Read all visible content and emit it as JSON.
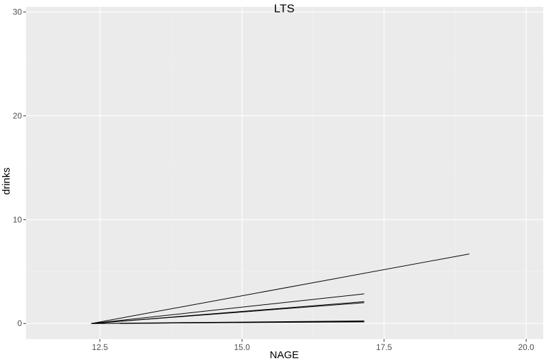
{
  "chart_data": {
    "type": "line",
    "title": "LTS",
    "xlabel": "NAGE",
    "ylabel": "drinks",
    "xlim": [
      11.2,
      20.3
    ],
    "ylim": [
      -1.5,
      30.5
    ],
    "x_ticks": [
      12.5,
      15.0,
      17.5,
      20.0
    ],
    "x_tick_labels": [
      "12.5",
      "15.0",
      "17.5",
      "20.0"
    ],
    "y_ticks": [
      0,
      10,
      20,
      30
    ],
    "y_tick_labels": [
      "0",
      "10",
      "20",
      "30"
    ],
    "grid": true,
    "legend": "none",
    "series": [
      {
        "x": [
          12.35,
          19.0
        ],
        "y": [
          0.0,
          6.7
        ]
      },
      {
        "x": [
          12.35,
          17.15
        ],
        "y": [
          0.0,
          2.85
        ]
      },
      {
        "x": [
          12.35,
          17.15
        ],
        "y": [
          0.0,
          2.1
        ]
      },
      {
        "x": [
          12.35,
          17.15
        ],
        "y": [
          0.0,
          2.0
        ]
      },
      {
        "x": [
          12.35,
          17.15
        ],
        "y": [
          0.0,
          0.25
        ]
      },
      {
        "x": [
          12.35,
          17.15
        ],
        "y": [
          0.0,
          0.15
        ]
      },
      {
        "x": [
          12.85,
          17.15
        ],
        "y": [
          0.0,
          0.2
        ]
      }
    ]
  },
  "colors": {
    "panel_background": "#ebebeb",
    "grid_major": "#ffffff",
    "grid_minor": "#f2f2f2",
    "line": "#000000",
    "tick_text": "#4d4d4d"
  }
}
